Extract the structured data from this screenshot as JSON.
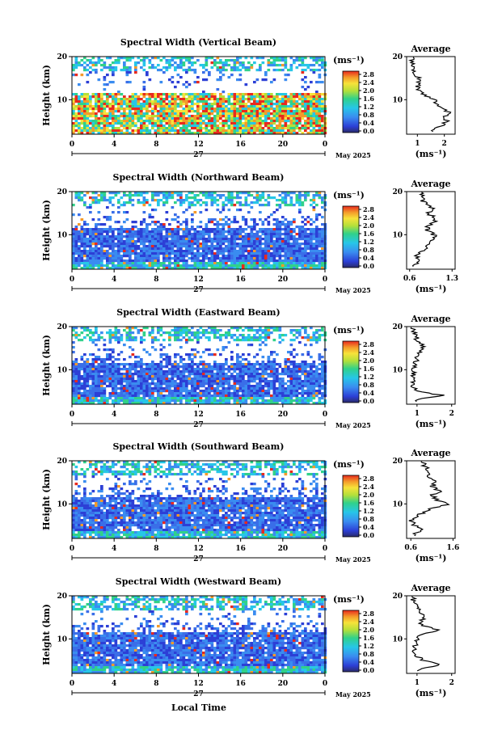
{
  "chart_data": [
    {
      "type": "heatmap",
      "title": "Spectral Width (Vertical Beam)",
      "ylabel": "Height (km)",
      "ylim": [
        2,
        20
      ],
      "xticks": [
        "0",
        "4",
        "8",
        "12",
        "16",
        "20",
        "0"
      ],
      "date_day": "27",
      "date_label": "May 2025",
      "colorbar": {
        "unit": "(ms⁻¹)",
        "ticks": [
          "2.8",
          "2.4",
          "2.0",
          "1.6",
          "1.2",
          "0.8",
          "0.4",
          "0.0"
        ]
      },
      "average": {
        "title": "Average",
        "xlabel": "(ms⁻¹)",
        "xticks": [
          "1",
          "2"
        ],
        "xlim": [
          0.6,
          2.4
        ],
        "profile": [
          [
            3,
            1.6
          ],
          [
            4,
            1.9
          ],
          [
            5,
            2.1
          ],
          [
            6,
            2.0
          ],
          [
            7,
            2.2
          ],
          [
            8,
            1.9
          ],
          [
            9,
            1.7
          ],
          [
            10,
            1.6
          ],
          [
            11,
            1.3
          ],
          [
            12,
            1.1
          ],
          [
            13,
            1.0
          ],
          [
            14,
            1.0
          ],
          [
            15,
            1.1
          ],
          [
            16,
            0.9
          ],
          [
            17,
            0.9
          ],
          [
            18,
            0.8
          ],
          [
            19,
            0.8
          ],
          [
            20,
            0.8
          ]
        ]
      }
    },
    {
      "type": "heatmap",
      "title": "Spectral Width (Northward Beam)",
      "ylabel": "Height (km)",
      "ylim": [
        2,
        20
      ],
      "xticks": [
        "0",
        "4",
        "8",
        "12",
        "16",
        "20",
        "0"
      ],
      "date_day": "27",
      "date_label": "May 2025",
      "colorbar": {
        "unit": "(ms⁻¹)",
        "ticks": [
          "2.8",
          "2.4",
          "2.0",
          "1.6",
          "1.2",
          "0.8",
          "0.4",
          "0.0"
        ]
      },
      "average": {
        "title": "Average",
        "xlabel": "(ms⁻¹)",
        "xticks": [
          "0.6",
          "1.3"
        ],
        "xlim": [
          0.55,
          1.35
        ],
        "profile": [
          [
            3,
            0.7
          ],
          [
            4,
            0.8
          ],
          [
            5,
            0.7
          ],
          [
            6,
            0.8
          ],
          [
            7,
            0.9
          ],
          [
            8,
            0.9
          ],
          [
            9,
            1.0
          ],
          [
            10,
            1.0
          ],
          [
            11,
            0.9
          ],
          [
            12,
            0.9
          ],
          [
            13,
            1.0
          ],
          [
            14,
            1.0
          ],
          [
            15,
            0.9
          ],
          [
            16,
            1.0
          ],
          [
            17,
            0.9
          ],
          [
            18,
            0.8
          ],
          [
            19,
            0.8
          ],
          [
            20,
            0.8
          ]
        ]
      }
    },
    {
      "type": "heatmap",
      "title": "Spectral Width (Eastward Beam)",
      "ylabel": "Height (km)",
      "ylim": [
        2,
        20
      ],
      "xticks": [
        "0",
        "4",
        "8",
        "12",
        "16",
        "20",
        "0"
      ],
      "date_day": "27",
      "date_label": "May 2025",
      "colorbar": {
        "unit": "(ms⁻¹)",
        "ticks": [
          "2.8",
          "2.4",
          "2.0",
          "1.6",
          "1.2",
          "0.8",
          "0.4",
          "0.0"
        ]
      },
      "average": {
        "title": "Average",
        "xlabel": "(ms⁻¹)",
        "xticks": [
          "1",
          "2"
        ],
        "xlim": [
          0.7,
          2.1
        ],
        "profile": [
          [
            3,
            0.9
          ],
          [
            4,
            1.8
          ],
          [
            5,
            1.0
          ],
          [
            6,
            0.9
          ],
          [
            7,
            0.9
          ],
          [
            8,
            0.9
          ],
          [
            9,
            0.9
          ],
          [
            10,
            0.9
          ],
          [
            11,
            0.9
          ],
          [
            12,
            1.0
          ],
          [
            13,
            1.0
          ],
          [
            14,
            1.1
          ],
          [
            15,
            1.2
          ],
          [
            16,
            1.1
          ],
          [
            17,
            1.0
          ],
          [
            18,
            1.0
          ],
          [
            19,
            0.9
          ],
          [
            20,
            0.9
          ]
        ]
      }
    },
    {
      "type": "heatmap",
      "title": "Spectral Width (Southward Beam)",
      "ylabel": "Height (km)",
      "ylim": [
        2,
        20
      ],
      "xticks": [
        "0",
        "4",
        "8",
        "12",
        "16",
        "20",
        "0"
      ],
      "date_day": "27",
      "date_label": "May 2025",
      "colorbar": {
        "unit": "(ms⁻¹)",
        "ticks": [
          "2.8",
          "2.4",
          "2.0",
          "1.6",
          "1.2",
          "0.8",
          "0.4",
          "0.0"
        ]
      },
      "average": {
        "title": "Average",
        "xlabel": "(ms⁻¹)",
        "xticks": [
          "0.6",
          "1.6"
        ],
        "xlim": [
          0.5,
          1.65
        ],
        "profile": [
          [
            3,
            0.7
          ],
          [
            4,
            0.9
          ],
          [
            5,
            0.7
          ],
          [
            6,
            0.6
          ],
          [
            7,
            0.7
          ],
          [
            8,
            0.9
          ],
          [
            9,
            1.1
          ],
          [
            10,
            1.5
          ],
          [
            11,
            1.2
          ],
          [
            12,
            1.1
          ],
          [
            13,
            1.3
          ],
          [
            14,
            1.1
          ],
          [
            15,
            1.2
          ],
          [
            16,
            1.0
          ],
          [
            17,
            1.1
          ],
          [
            18,
            1.0
          ],
          [
            19,
            0.9
          ],
          [
            20,
            0.9
          ]
        ]
      }
    },
    {
      "type": "heatmap",
      "title": "Spectral Width (Westward Beam)",
      "ylabel": "Height (km)",
      "ylim": [
        2,
        20
      ],
      "xticks": [
        "0",
        "4",
        "8",
        "12",
        "16",
        "20",
        "0"
      ],
      "date_day": "27",
      "date_label": "May 2025",
      "colorbar": {
        "unit": "(ms⁻¹)",
        "ticks": [
          "2.8",
          "2.4",
          "2.0",
          "1.6",
          "1.2",
          "0.8",
          "0.4",
          "0.0"
        ]
      },
      "average": {
        "title": "Average",
        "xlabel": "(ms⁻¹)",
        "xticks": [
          "1",
          "2"
        ],
        "xlim": [
          0.7,
          2.1
        ],
        "profile": [
          [
            3,
            1.0
          ],
          [
            4,
            1.7
          ],
          [
            5,
            1.2
          ],
          [
            6,
            1.0
          ],
          [
            7,
            0.9
          ],
          [
            8,
            0.9
          ],
          [
            9,
            1.0
          ],
          [
            10,
            1.0
          ],
          [
            11,
            1.1
          ],
          [
            12,
            1.6
          ],
          [
            13,
            1.2
          ],
          [
            14,
            1.1
          ],
          [
            15,
            1.2
          ],
          [
            16,
            1.1
          ],
          [
            17,
            1.0
          ],
          [
            18,
            1.0
          ],
          [
            19,
            0.9
          ],
          [
            20,
            0.9
          ]
        ]
      }
    }
  ],
  "xlabel": "Local Time"
}
